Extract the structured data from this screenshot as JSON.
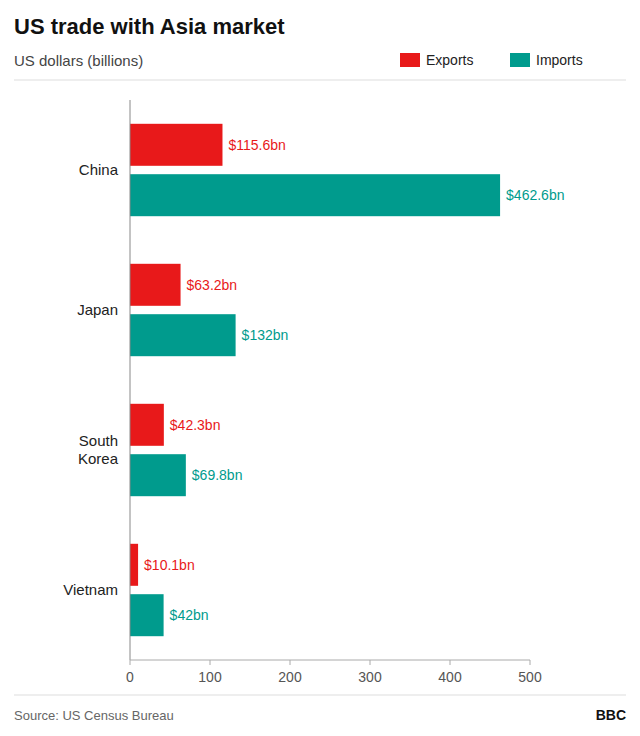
{
  "chart_data": {
    "type": "bar",
    "orientation": "horizontal",
    "title": "US trade with Asia market",
    "subtitle": "US dollars (billions)",
    "annotations": [
      "Source: US Census Bureau",
      "BBC"
    ],
    "categories": [
      "China",
      "Japan",
      "South\nKorea",
      "Vietnam"
    ],
    "series": [
      {
        "name": "Exports",
        "color": "#E8191A",
        "values": [
          115.6,
          63.2,
          42.3,
          10.1
        ],
        "value_labels": [
          "$115.6bn",
          "$63.2bn",
          "$42.3bn",
          "$10.1bn"
        ]
      },
      {
        "name": "Imports",
        "color": "#009B8D",
        "values": [
          462.6,
          132.0,
          69.8,
          42.0
        ],
        "value_labels": [
          "$462.6bn",
          "$132bn",
          "$69.8bn",
          "$42bn"
        ]
      }
    ],
    "xlim": [
      0,
      500
    ],
    "xticks": [
      0,
      100,
      200,
      300,
      400,
      500
    ],
    "data_labels": true,
    "grid": false,
    "legend": "top-right"
  }
}
